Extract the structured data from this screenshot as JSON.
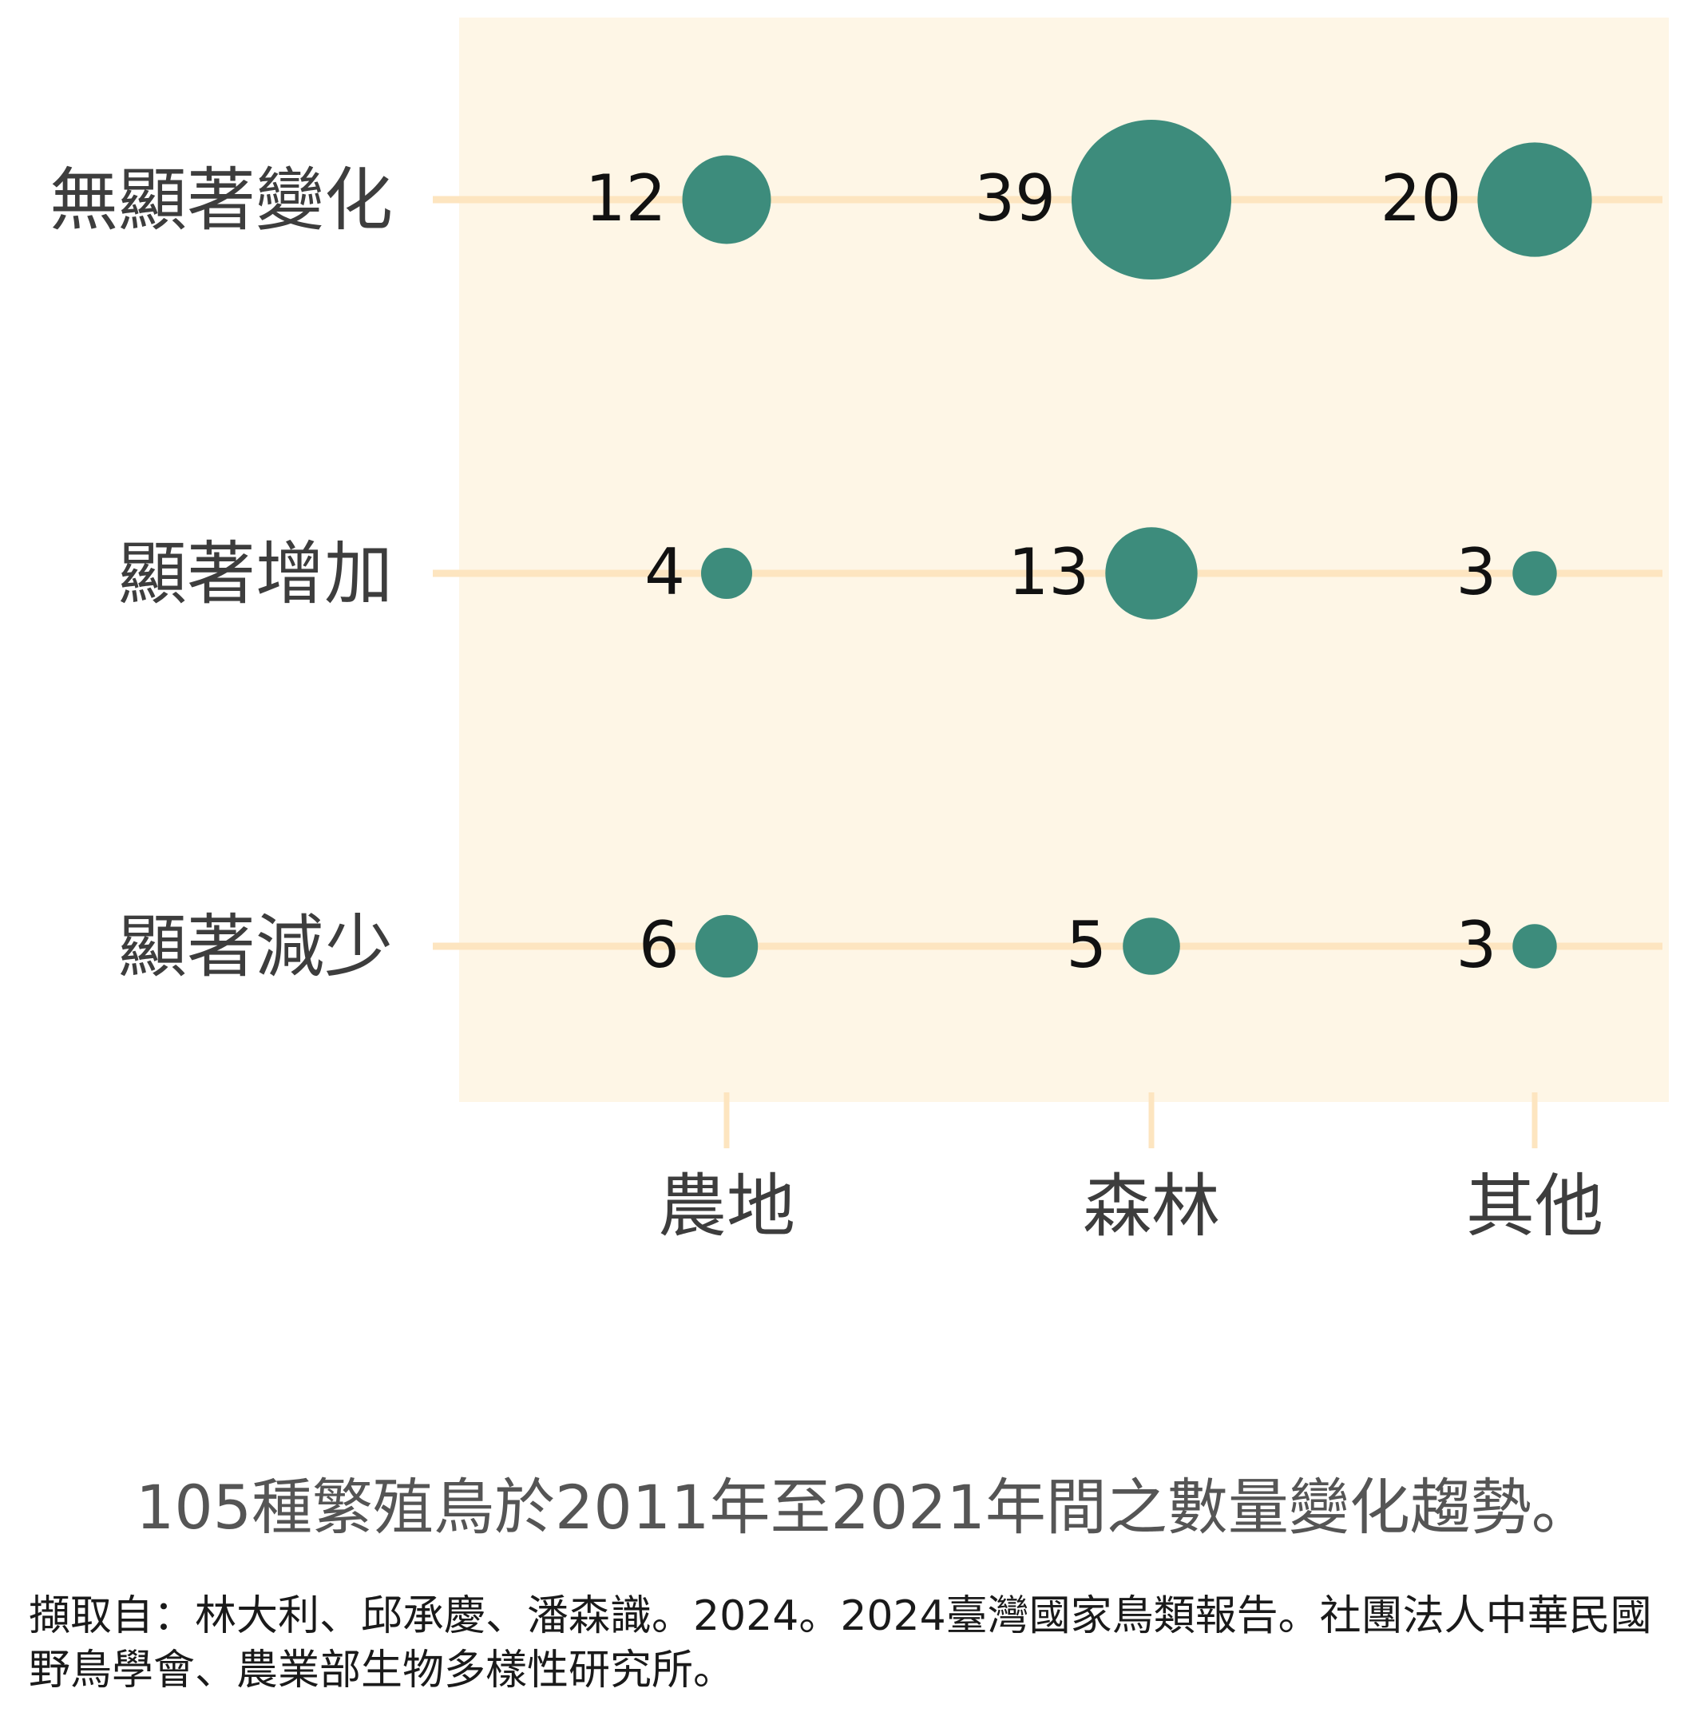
{
  "chart_data": {
    "type": "scatter",
    "title": "",
    "xlabel": "",
    "ylabel": "",
    "categories": [
      "農地",
      "森林",
      "其他"
    ],
    "rows": [
      "無顯著變化",
      "顯著增加",
      "顯著減少"
    ],
    "values": [
      [
        12,
        39,
        20
      ],
      [
        4,
        13,
        3
      ],
      [
        6,
        5,
        3
      ]
    ],
    "grid": true,
    "legend": "none"
  },
  "caption": "105種繁殖鳥於2011年至2021年間之數量變化趨勢。",
  "source": "擷取自：林大利、邱承慶、潘森識。2024。2024臺灣國家鳥類報告。社團法人中華民國野鳥學會、農業部生物多樣性研究所。",
  "colors": {
    "panel": "#fef6e6",
    "gridline": "#fde5c0",
    "bubble": "#3d8c7c",
    "text": "#3d3d3d"
  }
}
